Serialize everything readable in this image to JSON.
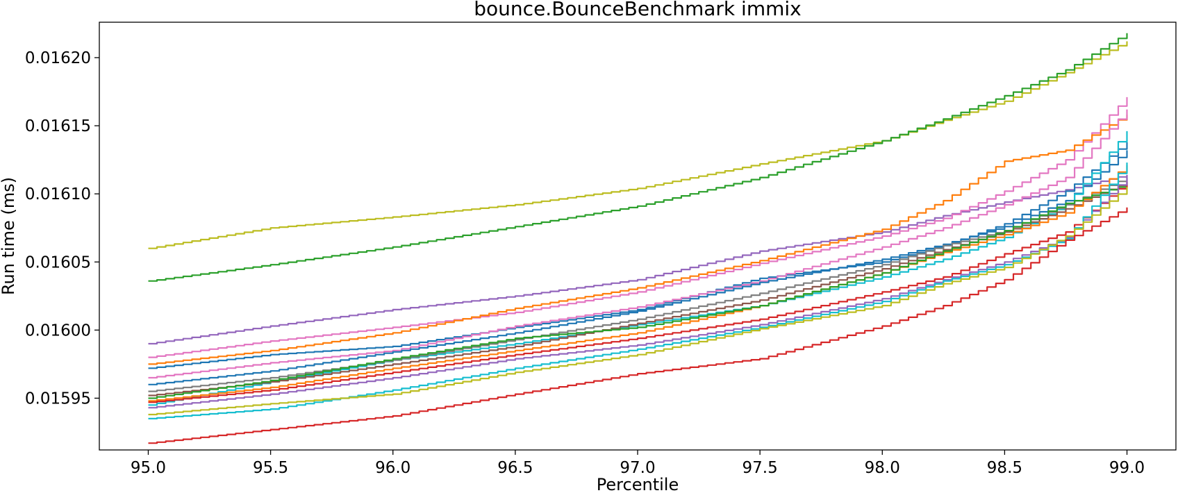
{
  "chart_data": {
    "type": "line",
    "title": "bounce.BounceBenchmark immix",
    "xlabel": "Percentile",
    "ylabel": "Run time (ms)",
    "xlim": [
      94.8,
      99.2
    ],
    "ylim": [
      0.015912,
      0.016226
    ],
    "xticks": [
      95.0,
      95.5,
      96.0,
      96.5,
      97.0,
      97.5,
      98.0,
      98.5,
      99.0
    ],
    "xtick_labels": [
      "95.0",
      "95.5",
      "96.0",
      "96.5",
      "97.0",
      "97.5",
      "98.0",
      "98.5",
      "99.0"
    ],
    "yticks": [
      0.01595,
      0.016,
      0.01605,
      0.0161,
      0.01615,
      0.0162
    ],
    "ytick_labels": [
      "0.01595",
      "0.01600",
      "0.01605",
      "0.01610",
      "0.01615",
      "0.01620"
    ],
    "grid": false,
    "legend": "none",
    "x": [
      95.0,
      95.5,
      96.0,
      96.5,
      97.0,
      97.5,
      98.0,
      98.25,
      98.5,
      98.75,
      99.0
    ],
    "series": [
      {
        "color": "#bcbd22",
        "values": [
          0.01606,
          0.016075,
          0.016083,
          0.016092,
          0.016104,
          0.016122,
          0.016139,
          0.016154,
          0.016168,
          0.016189,
          0.016212
        ]
      },
      {
        "color": "#2ca02c",
        "values": [
          0.016036,
          0.016048,
          0.016061,
          0.016076,
          0.016091,
          0.016112,
          0.016139,
          0.016155,
          0.016172,
          0.016191,
          0.016218
        ]
      },
      {
        "color": "#9467bd",
        "values": [
          0.01599,
          0.016003,
          0.016015,
          0.016025,
          0.016037,
          0.016058,
          0.016072,
          0.016084,
          0.016094,
          0.016103,
          0.016114
        ]
      },
      {
        "color": "#e377c2",
        "values": [
          0.01598,
          0.015992,
          0.016002,
          0.016013,
          0.016028,
          0.016049,
          0.016069,
          0.016082,
          0.016102,
          0.016125,
          0.016171
        ]
      },
      {
        "color": "#ff7f0e",
        "values": [
          0.015975,
          0.015985,
          0.015998,
          0.016016,
          0.016031,
          0.016051,
          0.016074,
          0.016095,
          0.016124,
          0.016132,
          0.016158
        ]
      },
      {
        "color": "#1f77b4",
        "values": [
          0.015972,
          0.015982,
          0.015988,
          0.016002,
          0.016015,
          0.016038,
          0.01605,
          0.016062,
          0.016078,
          0.016102,
          0.016138
        ]
      },
      {
        "color": "#e377c2",
        "values": [
          0.015965,
          0.015976,
          0.015985,
          0.016003,
          0.016017,
          0.016036,
          0.016061,
          0.016075,
          0.016092,
          0.016112,
          0.016162
        ]
      },
      {
        "color": "#1f77b4",
        "values": [
          0.01596,
          0.01597,
          0.015984,
          0.015998,
          0.016014,
          0.016035,
          0.016052,
          0.016063,
          0.016076,
          0.016095,
          0.016132
        ]
      },
      {
        "color": "#17becf",
        "values": [
          0.015945,
          0.015962,
          0.015978,
          0.01599,
          0.016004,
          0.016018,
          0.016039,
          0.016052,
          0.016068,
          0.016092,
          0.016146
        ]
      },
      {
        "color": "#7f7f7f",
        "values": [
          0.015955,
          0.015965,
          0.015978,
          0.015993,
          0.016008,
          0.016027,
          0.016048,
          0.016062,
          0.016073,
          0.016092,
          0.016112
        ]
      },
      {
        "color": "#8c564b",
        "values": [
          0.015952,
          0.015962,
          0.015975,
          0.015988,
          0.016005,
          0.016022,
          0.016045,
          0.016059,
          0.016072,
          0.016089,
          0.016109
        ]
      },
      {
        "color": "#ff7f0e",
        "values": [
          0.015948,
          0.015958,
          0.015972,
          0.015985,
          0.015998,
          0.016018,
          0.016042,
          0.016057,
          0.01607,
          0.016086,
          0.016121
        ]
      },
      {
        "color": "#2ca02c",
        "values": [
          0.01595,
          0.015963,
          0.015979,
          0.015994,
          0.016002,
          0.016018,
          0.016042,
          0.016058,
          0.016073,
          0.016093,
          0.016107
        ]
      },
      {
        "color": "#d62728",
        "values": [
          0.015947,
          0.015956,
          0.015969,
          0.015982,
          0.015994,
          0.016008,
          0.016028,
          0.016039,
          0.016056,
          0.016072,
          0.016109
        ]
      },
      {
        "color": "#9467bd",
        "values": [
          0.015943,
          0.015953,
          0.015965,
          0.015979,
          0.015989,
          0.016004,
          0.016023,
          0.016037,
          0.01605,
          0.016068,
          0.016113
        ]
      },
      {
        "color": "#17becf",
        "values": [
          0.015935,
          0.015942,
          0.015956,
          0.015972,
          0.015986,
          0.016002,
          0.016021,
          0.016036,
          0.016048,
          0.016067,
          0.016123
        ]
      },
      {
        "color": "#bcbd22",
        "values": [
          0.015938,
          0.015946,
          0.015953,
          0.015969,
          0.015982,
          0.016001,
          0.016018,
          0.016034,
          0.016046,
          0.016069,
          0.016105
        ]
      },
      {
        "color": "#d62728",
        "values": [
          0.015917,
          0.015927,
          0.015937,
          0.015953,
          0.015968,
          0.015979,
          0.016003,
          0.016018,
          0.016037,
          0.016066,
          0.01609
        ]
      }
    ]
  }
}
